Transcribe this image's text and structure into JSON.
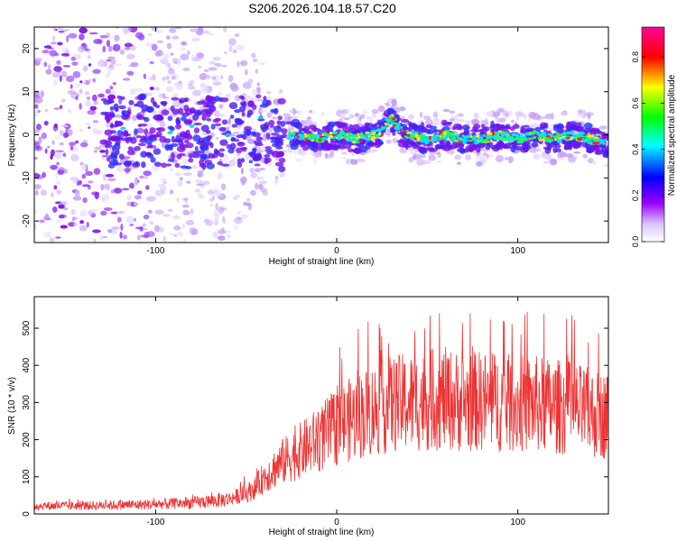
{
  "title": "S206.2026.104.18.57.C20",
  "chart_data": [
    {
      "type": "heatmap",
      "xlabel": "Height of straight line (km)",
      "ylabel": "Frequency (Hz)",
      "xlim": [
        -167,
        150
      ],
      "ylim": [
        -25,
        25
      ],
      "xticks": [
        -100,
        0,
        100
      ],
      "yticks": [
        -20,
        -10,
        0,
        10,
        20
      ],
      "colorbar": {
        "label": "Normalized spectral amplitude",
        "range": [
          0,
          0.93
        ],
        "ticks": [
          "0.0",
          "0.2",
          "0.4",
          "0.6",
          "0.8"
        ],
        "tick_values": [
          0,
          0.2,
          0.4,
          0.6,
          0.8
        ],
        "colors": [
          "#ffffff",
          "#9900ff",
          "#0000ff",
          "#00ffff",
          "#00ff00",
          "#ffff00",
          "#ff0000",
          "#ff0099"
        ]
      },
      "ridge": {
        "x": [
          -167,
          -140,
          -120,
          -100,
          -80,
          -60,
          -40,
          -30,
          -20,
          -10,
          0,
          10,
          20,
          25,
          30,
          35,
          40,
          50,
          60,
          70,
          80,
          90,
          100,
          110,
          120,
          130,
          140,
          150
        ],
        "y": [
          0,
          0,
          1,
          1,
          0,
          1,
          1,
          0,
          0,
          -1,
          0,
          -1,
          0,
          1,
          4,
          1,
          0,
          -1,
          0,
          -1,
          -1,
          0,
          -1,
          0,
          -1,
          0,
          -1,
          -2
        ]
      }
    },
    {
      "type": "line",
      "xlabel": "Height of straight line (km)",
      "ylabel": "SNR (10 * v/v)",
      "xlim": [
        -167,
        150
      ],
      "ylim": [
        0,
        585
      ],
      "xticks": [
        -100,
        0,
        100
      ],
      "yticks": [
        0,
        100,
        200,
        300,
        400,
        500
      ],
      "color": "#ee3333",
      "grid": false,
      "envelope": {
        "x": [
          -167,
          -140,
          -120,
          -100,
          -80,
          -70,
          -60,
          -50,
          -45,
          -40,
          -35,
          -30,
          -20,
          -10,
          0,
          10,
          20,
          30,
          40,
          50,
          60,
          70,
          80,
          90,
          100,
          110,
          120,
          130,
          140,
          150
        ],
        "y": [
          22,
          22,
          24,
          26,
          30,
          34,
          40,
          55,
          70,
          100,
          120,
          140,
          170,
          200,
          235,
          260,
          280,
          295,
          300,
          305,
          310,
          300,
          305,
          300,
          295,
          295,
          290,
          285,
          270,
          265
        ]
      }
    }
  ]
}
